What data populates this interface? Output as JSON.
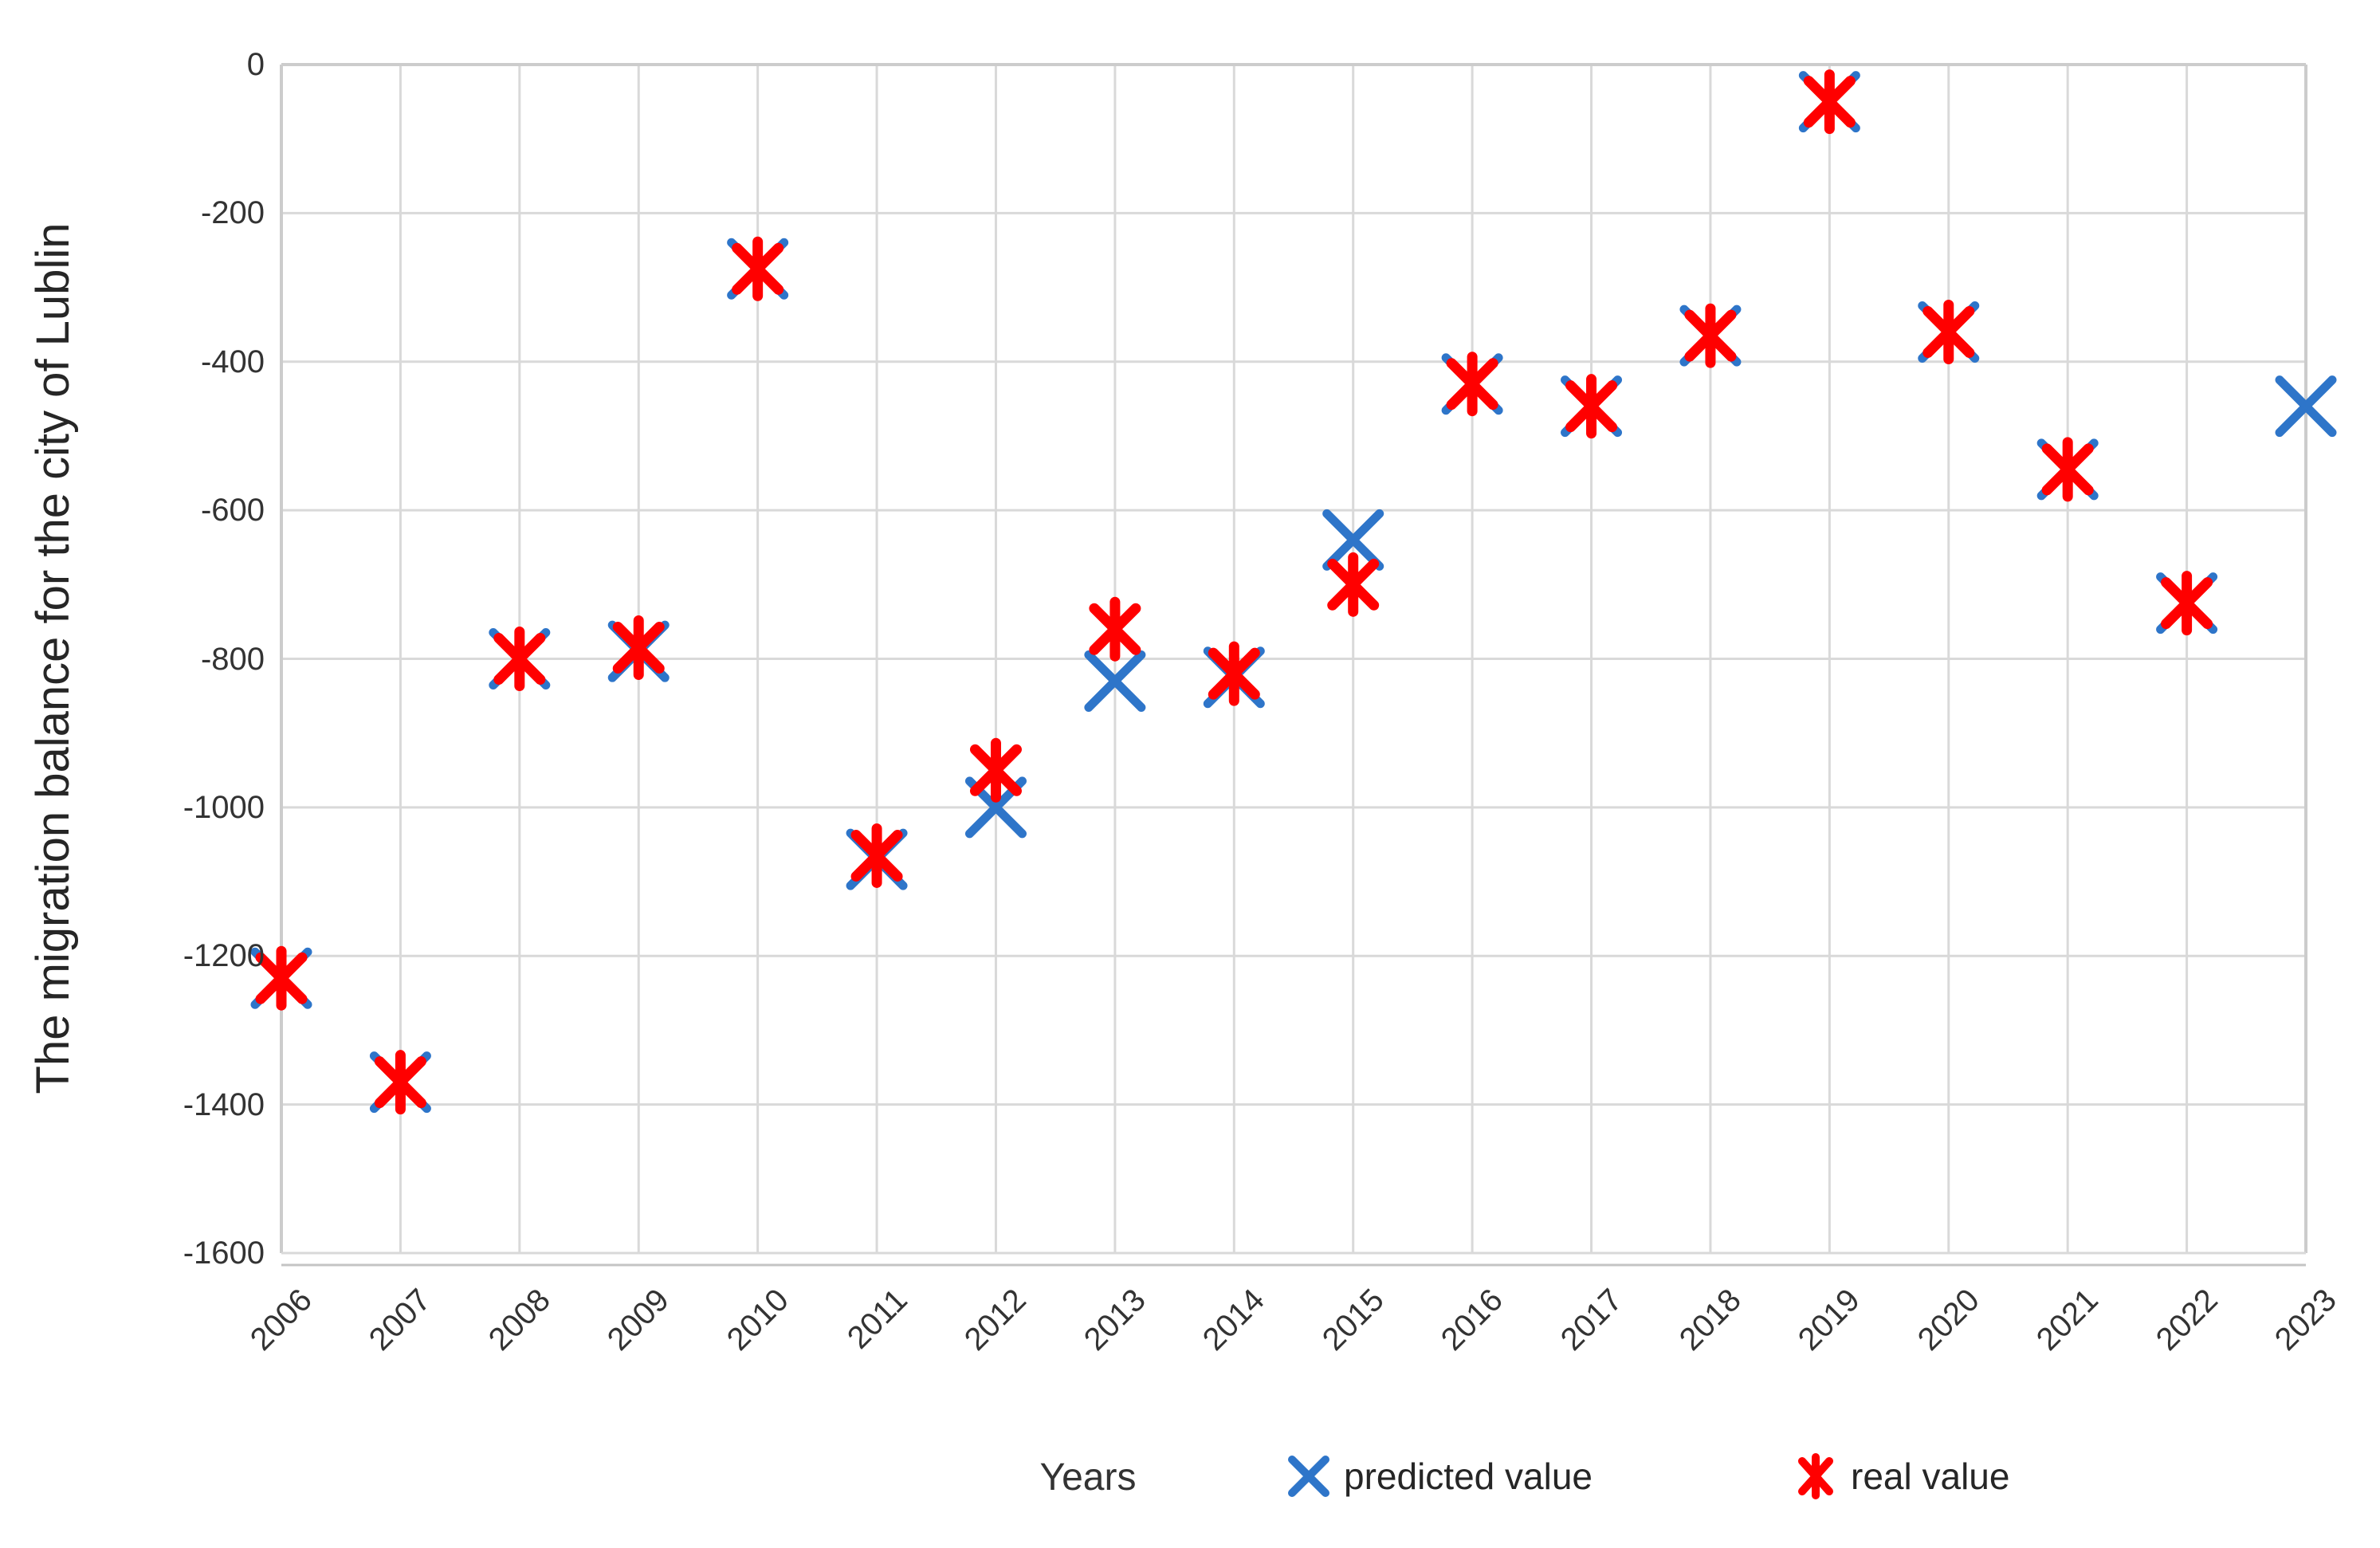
{
  "chart_data": {
    "type": "scatter",
    "title": "",
    "xlabel": "Years",
    "ylabel": "The migration balance for the city of Lublin",
    "categories": [
      "2006",
      "2007",
      "2008",
      "2009",
      "2010",
      "2011",
      "2012",
      "2013",
      "2014",
      "2015",
      "2016",
      "2017",
      "2018",
      "2019",
      "2020",
      "2021",
      "2022",
      "2023"
    ],
    "y_ticks": [
      0,
      -200,
      -400,
      -600,
      -800,
      -1000,
      -1200,
      -1400,
      -1600
    ],
    "ylim": [
      -1600,
      0
    ],
    "grid": true,
    "legend_position": "bottom",
    "series": [
      {
        "name": "predicted value",
        "marker": "x",
        "color": "#2E75C9",
        "values": [
          -1230,
          -1370,
          -800,
          -790,
          -275,
          -1070,
          -1000,
          -830,
          -825,
          -640,
          -430,
          -460,
          -365,
          -50,
          -360,
          -545,
          -725,
          -460
        ]
      },
      {
        "name": "real value",
        "marker": "asterisk",
        "color": "#FF0000",
        "values": [
          -1230,
          -1370,
          -800,
          -785,
          -275,
          -1065,
          -950,
          -760,
          -820,
          -700,
          -430,
          -460,
          -365,
          -50,
          -360,
          -545,
          -725,
          null
        ]
      }
    ]
  },
  "colors": {
    "predicted": "#2E75C9",
    "real": "#FF0000",
    "gridline": "#D9D9D9",
    "plot_border": "#CCCCCC",
    "axis_line": "#C4C4C4",
    "tick_text": "#333333",
    "title_text": "#262626",
    "background": "#FFFFFF"
  }
}
